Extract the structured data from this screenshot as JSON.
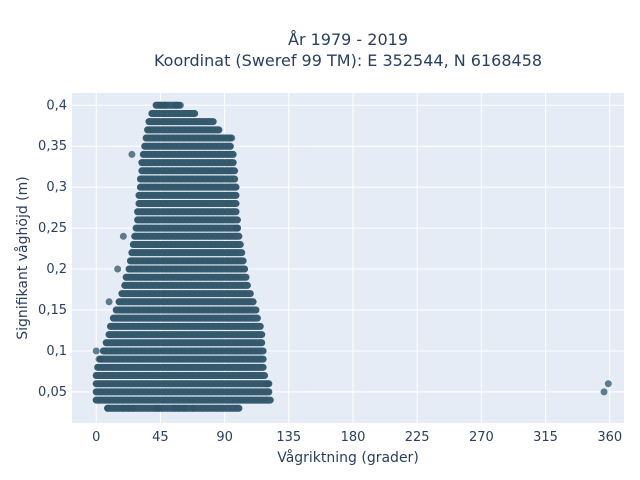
{
  "chart_data": {
    "type": "scatter",
    "title_line1": "År 1979 - 2019",
    "title_line2": "Koordinat (Sweref 99 TM): E 352544, N 6168458",
    "xlabel": "Vågriktning (grader)",
    "ylabel": "Signifikant våghöjd (m)",
    "xlim": [
      -17,
      370
    ],
    "ylim": [
      0.012,
      0.415
    ],
    "x_ticks": [
      0,
      45,
      90,
      135,
      180,
      225,
      270,
      315,
      360
    ],
    "y_ticks": [
      0.05,
      0.1,
      0.15,
      0.2,
      0.25,
      0.3,
      0.35,
      0.4
    ],
    "y_tick_labels": [
      "0,05",
      "0,1",
      "0,15",
      "0,2",
      "0,25",
      "0,3",
      "0,35",
      "0,4"
    ],
    "grid": true,
    "marker_color": "#2f5468",
    "density_envelope": [
      {
        "h": 0.03,
        "xmin": 8,
        "xmax": 100
      },
      {
        "h": 0.04,
        "xmin": 0,
        "xmax": 122
      },
      {
        "h": 0.05,
        "xmin": 0,
        "xmax": 121
      },
      {
        "h": 0.06,
        "xmin": 0,
        "xmax": 121
      },
      {
        "h": 0.07,
        "xmin": 0,
        "xmax": 118
      },
      {
        "h": 0.08,
        "xmin": 1,
        "xmax": 117
      },
      {
        "h": 0.09,
        "xmin": 3,
        "xmax": 117
      },
      {
        "h": 0.1,
        "xmin": 5,
        "xmax": 117
      },
      {
        "h": 0.11,
        "xmin": 7,
        "xmax": 116
      },
      {
        "h": 0.12,
        "xmin": 9,
        "xmax": 116
      },
      {
        "h": 0.13,
        "xmin": 10,
        "xmax": 115
      },
      {
        "h": 0.14,
        "xmin": 12,
        "xmax": 113
      },
      {
        "h": 0.15,
        "xmin": 14,
        "xmax": 112
      },
      {
        "h": 0.16,
        "xmin": 16,
        "xmax": 110
      },
      {
        "h": 0.17,
        "xmin": 18,
        "xmax": 108
      },
      {
        "h": 0.18,
        "xmin": 20,
        "xmax": 106
      },
      {
        "h": 0.19,
        "xmin": 21,
        "xmax": 105
      },
      {
        "h": 0.2,
        "xmin": 23,
        "xmax": 104
      },
      {
        "h": 0.21,
        "xmin": 24,
        "xmax": 103
      },
      {
        "h": 0.22,
        "xmin": 25,
        "xmax": 102
      },
      {
        "h": 0.23,
        "xmin": 26,
        "xmax": 101
      },
      {
        "h": 0.24,
        "xmin": 27,
        "xmax": 100
      },
      {
        "h": 0.25,
        "xmin": 28,
        "xmax": 99
      },
      {
        "h": 0.26,
        "xmin": 29,
        "xmax": 99
      },
      {
        "h": 0.27,
        "xmin": 29,
        "xmax": 98
      },
      {
        "h": 0.28,
        "xmin": 30,
        "xmax": 98
      },
      {
        "h": 0.29,
        "xmin": 30,
        "xmax": 98
      },
      {
        "h": 0.3,
        "xmin": 31,
        "xmax": 98
      },
      {
        "h": 0.31,
        "xmin": 31,
        "xmax": 97
      },
      {
        "h": 0.32,
        "xmin": 32,
        "xmax": 97
      },
      {
        "h": 0.33,
        "xmin": 32,
        "xmax": 96
      },
      {
        "h": 0.34,
        "xmin": 33,
        "xmax": 96
      },
      {
        "h": 0.35,
        "xmin": 34,
        "xmax": 94
      },
      {
        "h": 0.36,
        "xmin": 35,
        "xmax": 94
      },
      {
        "h": 0.37,
        "xmin": 36,
        "xmax": 86
      },
      {
        "h": 0.38,
        "xmin": 37,
        "xmax": 82
      },
      {
        "h": 0.39,
        "xmin": 39,
        "xmax": 69
      },
      {
        "h": 0.4,
        "xmin": 42,
        "xmax": 58
      }
    ],
    "points": [
      {
        "x": 0,
        "y": 0.1
      },
      {
        "x": 2,
        "y": 0.09
      },
      {
        "x": 9,
        "y": 0.16
      },
      {
        "x": 15,
        "y": 0.2
      },
      {
        "x": 19,
        "y": 0.24
      },
      {
        "x": 25,
        "y": 0.34
      },
      {
        "x": 95,
        "y": 0.36
      },
      {
        "x": 99,
        "y": 0.25
      },
      {
        "x": 120,
        "y": 0.06
      },
      {
        "x": 8,
        "y": 0.03
      },
      {
        "x": 19,
        "y": 0.03
      },
      {
        "x": 23,
        "y": 0.03
      },
      {
        "x": 26,
        "y": 0.03
      },
      {
        "x": 42,
        "y": 0.03
      },
      {
        "x": 44,
        "y": 0.03
      },
      {
        "x": 55,
        "y": 0.03
      },
      {
        "x": 58,
        "y": 0.03
      },
      {
        "x": 62,
        "y": 0.03
      },
      {
        "x": 68,
        "y": 0.03
      },
      {
        "x": 45,
        "y": 0.4
      },
      {
        "x": 48,
        "y": 0.4
      },
      {
        "x": 56,
        "y": 0.4
      },
      {
        "x": 59,
        "y": 0.4
      },
      {
        "x": 356,
        "y": 0.05
      },
      {
        "x": 359,
        "y": 0.06
      }
    ]
  }
}
